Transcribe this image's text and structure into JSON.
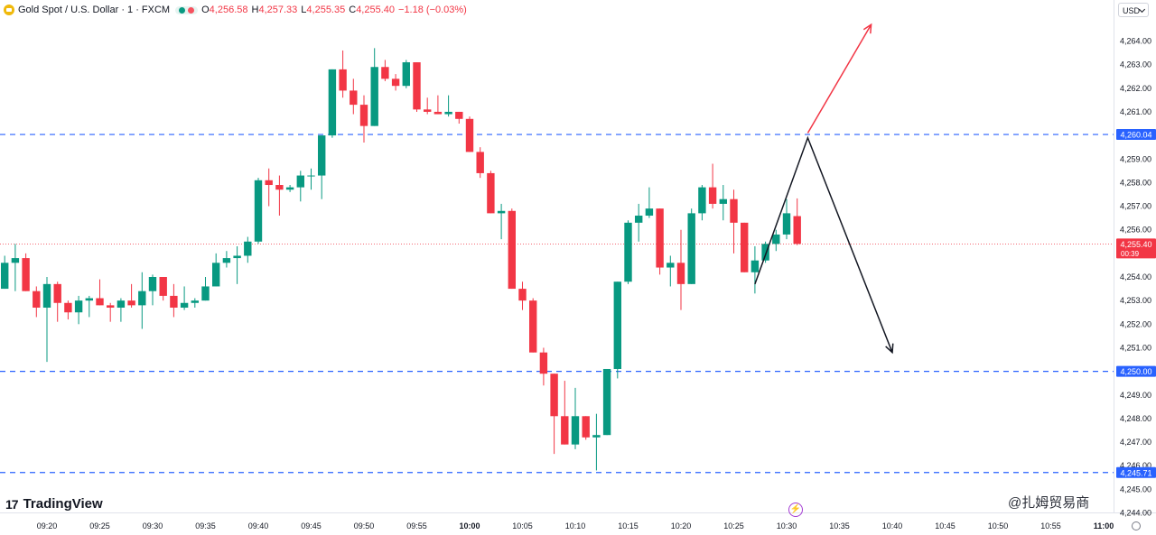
{
  "header": {
    "symbol": "Gold Spot / U.S. Dollar · 1 · FXCM",
    "open_label": "O",
    "open": "4,256.58",
    "high_label": "H",
    "high": "4,257.33",
    "low_label": "L",
    "low": "4,255.35",
    "close_label": "C",
    "close": "4,255.40",
    "change": "−1.18 (−0.03%)"
  },
  "currency_button": "USD",
  "brand": "TradingView",
  "watermark": "@扎姆贸易商",
  "colors": {
    "up": "#089981",
    "down": "#f23645",
    "level_line": "#2962ff",
    "price_line": "#f23645",
    "axis_text": "#131722",
    "grid": "#f0f3fa",
    "arrow_up": "#f23645",
    "arrow_down": "#131722"
  },
  "chart_data": {
    "type": "candlestick",
    "interval": "1 minute",
    "x_start": "09:15",
    "ylim": [
      4243.5,
      4265.6
    ],
    "y_ticks": [
      "4,264.00",
      "4,263.00",
      "4,262.00",
      "4,261.00",
      "4,260.00",
      "4,259.00",
      "4,258.00",
      "4,257.00",
      "4,256.00",
      "4,255.00",
      "4,254.00",
      "4,253.00",
      "4,252.00",
      "4,251.00",
      "4,250.00",
      "4,249.00",
      "4,248.00",
      "4,247.00",
      "4,246.00",
      "4,245.00",
      "4,244.00"
    ],
    "x_ticks": [
      "09:20",
      "09:25",
      "09:30",
      "09:35",
      "09:40",
      "09:45",
      "09:50",
      "09:55",
      "10:00",
      "10:05",
      "10:10",
      "10:15",
      "10:20",
      "10:25",
      "10:30",
      "10:35",
      "10:40",
      "10:45",
      "10:50",
      "10:55",
      "11:00"
    ],
    "bold_ticks": [
      "10:00",
      "11:00"
    ],
    "candles": [
      {
        "t": "09:15",
        "o": 4253.8,
        "h": 4254.2,
        "l": 4252.9,
        "c": 4253.5
      },
      {
        "t": "09:16",
        "o": 4253.5,
        "h": 4254.9,
        "l": 4253.5,
        "c": 4254.6
      },
      {
        "t": "09:17",
        "o": 4254.6,
        "h": 4255.4,
        "l": 4253.4,
        "c": 4254.8
      },
      {
        "t": "09:18",
        "o": 4254.8,
        "h": 4255.0,
        "l": 4253.4,
        "c": 4253.4
      },
      {
        "t": "09:19",
        "o": 4253.4,
        "h": 4253.6,
        "l": 4252.3,
        "c": 4252.7
      },
      {
        "t": "09:20",
        "o": 4252.7,
        "h": 4254.0,
        "l": 4250.4,
        "c": 4253.7
      },
      {
        "t": "09:21",
        "o": 4253.7,
        "h": 4253.8,
        "l": 4252.1,
        "c": 4252.9
      },
      {
        "t": "09:22",
        "o": 4252.9,
        "h": 4253.0,
        "l": 4252.2,
        "c": 4252.5
      },
      {
        "t": "09:23",
        "o": 4252.5,
        "h": 4253.2,
        "l": 4252.0,
        "c": 4253.0
      },
      {
        "t": "09:24",
        "o": 4253.0,
        "h": 4253.2,
        "l": 4252.3,
        "c": 4253.1
      },
      {
        "t": "09:25",
        "o": 4253.1,
        "h": 4253.9,
        "l": 4252.8,
        "c": 4252.8
      },
      {
        "t": "09:26",
        "o": 4252.8,
        "h": 4252.9,
        "l": 4252.1,
        "c": 4252.7
      },
      {
        "t": "09:27",
        "o": 4252.7,
        "h": 4253.1,
        "l": 4252.1,
        "c": 4253.0
      },
      {
        "t": "09:28",
        "o": 4253.0,
        "h": 4253.7,
        "l": 4252.7,
        "c": 4252.8
      },
      {
        "t": "09:29",
        "o": 4252.8,
        "h": 4254.2,
        "l": 4251.8,
        "c": 4253.4
      },
      {
        "t": "09:30",
        "o": 4253.4,
        "h": 4254.1,
        "l": 4252.8,
        "c": 4254.0
      },
      {
        "t": "09:31",
        "o": 4254.0,
        "h": 4254.0,
        "l": 4253.0,
        "c": 4253.2
      },
      {
        "t": "09:32",
        "o": 4253.2,
        "h": 4253.7,
        "l": 4252.3,
        "c": 4252.7
      },
      {
        "t": "09:33",
        "o": 4252.7,
        "h": 4253.6,
        "l": 4252.6,
        "c": 4252.9
      },
      {
        "t": "09:34",
        "o": 4252.9,
        "h": 4253.1,
        "l": 4252.7,
        "c": 4253.0
      },
      {
        "t": "09:35",
        "o": 4253.0,
        "h": 4254.0,
        "l": 4253.0,
        "c": 4253.6
      },
      {
        "t": "09:36",
        "o": 4253.6,
        "h": 4255.0,
        "l": 4253.6,
        "c": 4254.6
      },
      {
        "t": "09:37",
        "o": 4254.6,
        "h": 4255.1,
        "l": 4254.4,
        "c": 4254.8
      },
      {
        "t": "09:38",
        "o": 4254.8,
        "h": 4255.3,
        "l": 4253.7,
        "c": 4254.9
      },
      {
        "t": "09:39",
        "o": 4254.9,
        "h": 4255.7,
        "l": 4254.6,
        "c": 4255.5
      },
      {
        "t": "09:40",
        "o": 4255.5,
        "h": 4258.2,
        "l": 4255.4,
        "c": 4258.1
      },
      {
        "t": "09:41",
        "o": 4258.1,
        "h": 4258.6,
        "l": 4257.0,
        "c": 4257.9
      },
      {
        "t": "09:42",
        "o": 4257.9,
        "h": 4258.3,
        "l": 4256.6,
        "c": 4257.7
      },
      {
        "t": "09:43",
        "o": 4257.7,
        "h": 4257.9,
        "l": 4257.6,
        "c": 4257.8
      },
      {
        "t": "09:44",
        "o": 4257.8,
        "h": 4258.5,
        "l": 4257.2,
        "c": 4258.3
      },
      {
        "t": "09:45",
        "o": 4258.3,
        "h": 4258.6,
        "l": 4257.7,
        "c": 4258.3
      },
      {
        "t": "09:46",
        "o": 4258.3,
        "h": 4260.0,
        "l": 4257.3,
        "c": 4260.0
      },
      {
        "t": "09:47",
        "o": 4260.0,
        "h": 4262.8,
        "l": 4259.9,
        "c": 4262.8
      },
      {
        "t": "09:48",
        "o": 4262.8,
        "h": 4263.6,
        "l": 4261.6,
        "c": 4261.9
      },
      {
        "t": "09:49",
        "o": 4261.9,
        "h": 4262.4,
        "l": 4260.9,
        "c": 4261.3
      },
      {
        "t": "09:50",
        "o": 4261.3,
        "h": 4261.7,
        "l": 4259.7,
        "c": 4260.4
      },
      {
        "t": "09:51",
        "o": 4260.4,
        "h": 4263.7,
        "l": 4260.4,
        "c": 4262.9
      },
      {
        "t": "09:52",
        "o": 4262.9,
        "h": 4263.2,
        "l": 4262.3,
        "c": 4262.4
      },
      {
        "t": "09:53",
        "o": 4262.4,
        "h": 4262.6,
        "l": 4261.9,
        "c": 4262.1
      },
      {
        "t": "09:54",
        "o": 4262.1,
        "h": 4263.2,
        "l": 4262.0,
        "c": 4263.1
      },
      {
        "t": "09:55",
        "o": 4263.1,
        "h": 4263.1,
        "l": 4261.0,
        "c": 4261.1
      },
      {
        "t": "09:56",
        "o": 4261.1,
        "h": 4261.6,
        "l": 4260.9,
        "c": 4261.0
      },
      {
        "t": "09:57",
        "o": 4261.0,
        "h": 4261.7,
        "l": 4260.9,
        "c": 4260.9
      },
      {
        "t": "09:58",
        "o": 4260.9,
        "h": 4261.7,
        "l": 4260.8,
        "c": 4261.0
      },
      {
        "t": "09:59",
        "o": 4261.0,
        "h": 4261.0,
        "l": 4260.5,
        "c": 4260.7
      },
      {
        "t": "10:00",
        "o": 4260.7,
        "h": 4260.8,
        "l": 4259.3,
        "c": 4259.3
      },
      {
        "t": "10:01",
        "o": 4259.3,
        "h": 4259.5,
        "l": 4258.2,
        "c": 4258.4
      },
      {
        "t": "10:02",
        "o": 4258.4,
        "h": 4258.5,
        "l": 4256.7,
        "c": 4256.7
      },
      {
        "t": "10:03",
        "o": 4256.7,
        "h": 4257.1,
        "l": 4255.6,
        "c": 4256.8
      },
      {
        "t": "10:04",
        "o": 4256.8,
        "h": 4256.9,
        "l": 4253.5,
        "c": 4253.5
      },
      {
        "t": "10:05",
        "o": 4253.5,
        "h": 4253.8,
        "l": 4252.6,
        "c": 4253.0
      },
      {
        "t": "10:06",
        "o": 4253.0,
        "h": 4253.1,
        "l": 4250.8,
        "c": 4250.8
      },
      {
        "t": "10:07",
        "o": 4250.8,
        "h": 4251.0,
        "l": 4249.4,
        "c": 4249.9
      },
      {
        "t": "10:08",
        "o": 4249.9,
        "h": 4249.9,
        "l": 4246.5,
        "c": 4248.1
      },
      {
        "t": "10:09",
        "o": 4248.1,
        "h": 4249.6,
        "l": 4246.9,
        "c": 4246.9
      },
      {
        "t": "10:10",
        "o": 4246.9,
        "h": 4249.3,
        "l": 4246.7,
        "c": 4248.1
      },
      {
        "t": "10:11",
        "o": 4248.1,
        "h": 4248.1,
        "l": 4247.1,
        "c": 4247.2
      },
      {
        "t": "10:12",
        "o": 4247.2,
        "h": 4248.2,
        "l": 4245.8,
        "c": 4247.3
      },
      {
        "t": "10:13",
        "o": 4247.3,
        "h": 4250.1,
        "l": 4247.3,
        "c": 4250.1
      },
      {
        "t": "10:14",
        "o": 4250.1,
        "h": 4253.8,
        "l": 4249.7,
        "c": 4253.8
      },
      {
        "t": "10:15",
        "o": 4253.8,
        "h": 4256.4,
        "l": 4253.7,
        "c": 4256.3
      },
      {
        "t": "10:16",
        "o": 4256.3,
        "h": 4257.1,
        "l": 4255.5,
        "c": 4256.6
      },
      {
        "t": "10:17",
        "o": 4256.6,
        "h": 4257.8,
        "l": 4256.5,
        "c": 4256.9
      },
      {
        "t": "10:18",
        "o": 4256.9,
        "h": 4256.9,
        "l": 4254.1,
        "c": 4254.4
      },
      {
        "t": "10:19",
        "o": 4254.4,
        "h": 4254.9,
        "l": 4253.6,
        "c": 4254.6
      },
      {
        "t": "10:20",
        "o": 4254.6,
        "h": 4256.0,
        "l": 4252.6,
        "c": 4253.7
      },
      {
        "t": "10:21",
        "o": 4253.7,
        "h": 4256.9,
        "l": 4253.7,
        "c": 4256.7
      },
      {
        "t": "10:22",
        "o": 4256.7,
        "h": 4257.9,
        "l": 4256.4,
        "c": 4257.8
      },
      {
        "t": "10:23",
        "o": 4257.8,
        "h": 4258.8,
        "l": 4256.9,
        "c": 4257.1
      },
      {
        "t": "10:24",
        "o": 4257.1,
        "h": 4257.9,
        "l": 4256.4,
        "c": 4257.3
      },
      {
        "t": "10:25",
        "o": 4257.3,
        "h": 4257.7,
        "l": 4255.0,
        "c": 4256.3
      },
      {
        "t": "10:26",
        "o": 4256.3,
        "h": 4256.3,
        "l": 4254.2,
        "c": 4254.2
      },
      {
        "t": "10:27",
        "o": 4254.2,
        "h": 4255.3,
        "l": 4253.3,
        "c": 4254.7
      },
      {
        "t": "10:28",
        "o": 4254.7,
        "h": 4255.5,
        "l": 4254.6,
        "c": 4255.4
      },
      {
        "t": "10:29",
        "o": 4255.4,
        "h": 4256.0,
        "l": 4255.1,
        "c": 4255.8
      },
      {
        "t": "10:30",
        "o": 4255.8,
        "h": 4257.3,
        "l": 4255.6,
        "c": 4256.7
      },
      {
        "t": "10:31",
        "o": 4256.58,
        "h": 4257.33,
        "l": 4255.35,
        "c": 4255.4
      }
    ],
    "levels": [
      {
        "price": 4260.04,
        "label": "4,260.04"
      },
      {
        "price": 4250.0,
        "label": "4,250.00"
      },
      {
        "price": 4245.71,
        "label": "4,245.71"
      }
    ],
    "current_price": {
      "price": 4255.4,
      "label": "4,255.40",
      "countdown": "00:39"
    },
    "drawings": [
      {
        "kind": "path",
        "points": [
          [
            "10:27",
            4253.7
          ],
          [
            "10:32",
            4259.9
          ],
          [
            "10:40",
            4250.8
          ]
        ]
      },
      {
        "kind": "arrow_up",
        "from": [
          "10:32",
          4260.1
        ],
        "to": [
          "10:38",
          4264.7
        ]
      }
    ]
  }
}
